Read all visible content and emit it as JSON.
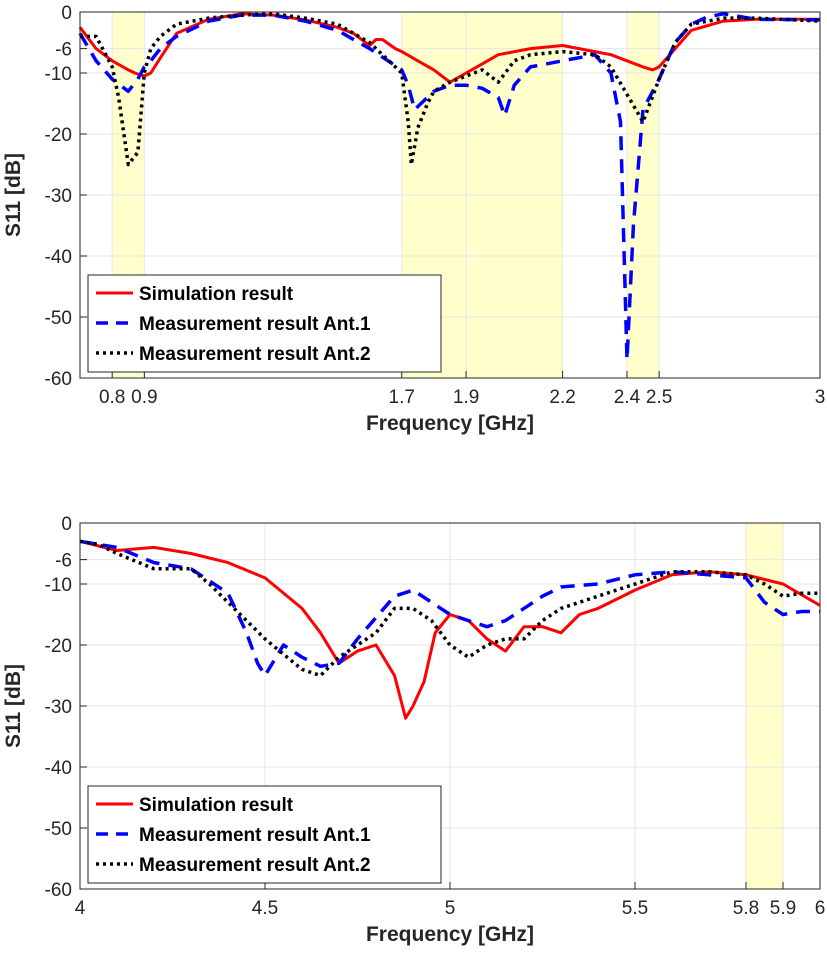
{
  "chart_data": [
    {
      "type": "line",
      "xlabel": "Frequency [GHz]",
      "ylabel": "S11 [dB]",
      "xlim": [
        0.7,
        3
      ],
      "ylim": [
        -60,
        0
      ],
      "xticks": [
        0.8,
        0.9,
        1.7,
        1.9,
        2.2,
        2.4,
        2.5,
        3
      ],
      "xtick_labels": [
        "0.8",
        "0.9",
        "1.7",
        "1.9",
        "2.2",
        "2.4",
        "2.5",
        "3"
      ],
      "yticks": [
        0,
        -6,
        -10,
        -20,
        -30,
        -40,
        -50,
        -60
      ],
      "ytick_labels": [
        "0",
        "-6",
        "-10",
        "-20",
        "-30",
        "-40",
        "-50",
        "-60"
      ],
      "grid": true,
      "legend_position": "bottom-left",
      "highlight_bands": [
        [
          0.8,
          0.9
        ],
        [
          1.7,
          2.2
        ],
        [
          2.4,
          2.5
        ]
      ],
      "highlight_color": "#ffffcc",
      "series": [
        {
          "name": "Simulation result",
          "color": "#ff0000",
          "style": "solid",
          "x": [
            0.7,
            0.75,
            0.8,
            0.85,
            0.87,
            0.9,
            0.92,
            0.95,
            1.0,
            1.1,
            1.2,
            1.3,
            1.4,
            1.5,
            1.55,
            1.6,
            1.62,
            1.64,
            1.68,
            1.7,
            1.75,
            1.8,
            1.85,
            1.9,
            1.95,
            2.0,
            2.1,
            2.2,
            2.3,
            2.35,
            2.4,
            2.45,
            2.48,
            2.5,
            2.55,
            2.6,
            2.7,
            2.8,
            3.0
          ],
          "y": [
            -2.5,
            -6,
            -8,
            -9.5,
            -10,
            -10.5,
            -10,
            -7.5,
            -3.5,
            -1.2,
            -0.3,
            -0.5,
            -1.3,
            -2.5,
            -3.5,
            -5.5,
            -4.5,
            -4.5,
            -6,
            -6.5,
            -8,
            -9.5,
            -11.5,
            -10,
            -8.5,
            -7,
            -6,
            -5.5,
            -6.5,
            -7,
            -8,
            -9,
            -9.5,
            -9,
            -6,
            -3,
            -1.5,
            -1.2,
            -1.2
          ]
        },
        {
          "name": "Measurement result Ant.1",
          "color": "#0000ff",
          "style": "dashed",
          "x": [
            0.7,
            0.75,
            0.8,
            0.85,
            0.88,
            0.9,
            0.92,
            0.95,
            1.0,
            1.1,
            1.2,
            1.3,
            1.4,
            1.5,
            1.6,
            1.7,
            1.72,
            1.74,
            1.76,
            1.8,
            1.85,
            1.9,
            1.95,
            2.0,
            2.02,
            2.05,
            2.1,
            2.2,
            2.3,
            2.35,
            2.38,
            2.4,
            2.42,
            2.45,
            2.5,
            2.55,
            2.6,
            2.65,
            2.7,
            2.8,
            3.0
          ],
          "y": [
            -3.5,
            -8,
            -11,
            -13,
            -11,
            -9,
            -8,
            -6,
            -4,
            -1.5,
            -0.5,
            -0.5,
            -1.5,
            -3,
            -6,
            -9.5,
            -12,
            -16,
            -15,
            -13,
            -12,
            -12,
            -12.5,
            -14,
            -17,
            -12,
            -9,
            -8,
            -7,
            -10,
            -18,
            -57,
            -35,
            -16,
            -11,
            -5,
            -2,
            -0.8,
            -0.3,
            -1.2,
            -1.3
          ]
        },
        {
          "name": "Measurement result Ant.2",
          "color": "#000000",
          "style": "dotted",
          "x": [
            0.7,
            0.75,
            0.8,
            0.82,
            0.85,
            0.88,
            0.9,
            0.92,
            0.95,
            1.0,
            1.1,
            1.2,
            1.3,
            1.4,
            1.5,
            1.6,
            1.7,
            1.72,
            1.73,
            1.75,
            1.78,
            1.8,
            1.85,
            1.9,
            1.95,
            2.0,
            2.05,
            2.1,
            2.2,
            2.3,
            2.35,
            2.4,
            2.45,
            2.5,
            2.55,
            2.6,
            2.7,
            2.8,
            3.0
          ],
          "y": [
            -4,
            -4,
            -9,
            -14,
            -25,
            -23,
            -10,
            -6,
            -4,
            -2,
            -1,
            -0.5,
            -0.3,
            -1,
            -2,
            -5,
            -10,
            -18,
            -25,
            -19,
            -15,
            -13,
            -11.5,
            -10.5,
            -9.5,
            -11.5,
            -8,
            -7,
            -6.5,
            -7,
            -9,
            -13.5,
            -18,
            -11,
            -5,
            -2,
            -1,
            -1,
            -1.5
          ]
        }
      ]
    },
    {
      "type": "line",
      "xlabel": "Frequency [GHz]",
      "ylabel": "S11 [dB]",
      "xlim": [
        4,
        6
      ],
      "ylim": [
        -60,
        0
      ],
      "xticks": [
        4,
        4.5,
        5,
        5.5,
        5.8,
        5.9,
        6
      ],
      "xtick_labels": [
        "4",
        "4.5",
        "5",
        "5.5",
        "5.8",
        "5.9",
        "6"
      ],
      "yticks": [
        0,
        -6,
        -10,
        -20,
        -30,
        -40,
        -50,
        -60
      ],
      "ytick_labels": [
        "0",
        "-6",
        "-10",
        "-20",
        "-30",
        "-40",
        "-50",
        "-60"
      ],
      "grid": true,
      "legend_position": "bottom-left",
      "highlight_bands": [
        [
          5.8,
          5.9
        ]
      ],
      "highlight_color": "#ffffcc",
      "series": [
        {
          "name": "Simulation result",
          "color": "#ff0000",
          "style": "solid",
          "x": [
            4.0,
            4.1,
            4.2,
            4.3,
            4.4,
            4.5,
            4.6,
            4.65,
            4.7,
            4.75,
            4.8,
            4.85,
            4.88,
            4.9,
            4.93,
            4.96,
            5.0,
            5.05,
            5.1,
            5.15,
            5.2,
            5.25,
            5.3,
            5.35,
            5.4,
            5.5,
            5.6,
            5.7,
            5.8,
            5.9,
            6.0
          ],
          "y": [
            -3,
            -4.5,
            -4,
            -5,
            -6.5,
            -9,
            -14,
            -18,
            -23,
            -21,
            -20,
            -25,
            -32,
            -30,
            -26,
            -18,
            -15,
            -16,
            -19,
            -21,
            -17,
            -17,
            -18,
            -15,
            -14,
            -11,
            -8.5,
            -8,
            -8.5,
            -10,
            -13.5
          ]
        },
        {
          "name": "Measurement result Ant.1",
          "color": "#0000ff",
          "style": "dashed",
          "x": [
            4.0,
            4.05,
            4.1,
            4.2,
            4.3,
            4.4,
            4.45,
            4.48,
            4.5,
            4.55,
            4.6,
            4.65,
            4.7,
            4.75,
            4.8,
            4.85,
            4.9,
            4.95,
            5.0,
            5.05,
            5.1,
            5.15,
            5.2,
            5.25,
            5.3,
            5.4,
            5.5,
            5.6,
            5.7,
            5.8,
            5.85,
            5.9,
            5.95,
            6.0
          ],
          "y": [
            -3,
            -3.5,
            -4,
            -6.5,
            -7.5,
            -11.5,
            -18,
            -23,
            -25,
            -20,
            -22,
            -23.5,
            -23,
            -19,
            -15.5,
            -12,
            -11,
            -13,
            -15,
            -16,
            -17,
            -16,
            -14,
            -12,
            -10.5,
            -10,
            -8.5,
            -8,
            -8.5,
            -9,
            -13,
            -15,
            -14.5,
            -14.5
          ]
        },
        {
          "name": "Measurement result Ant.2",
          "color": "#000000",
          "style": "dotted",
          "x": [
            4.0,
            4.05,
            4.1,
            4.2,
            4.3,
            4.35,
            4.4,
            4.45,
            4.5,
            4.55,
            4.6,
            4.65,
            4.7,
            4.75,
            4.8,
            4.85,
            4.9,
            4.95,
            5.0,
            5.05,
            5.1,
            5.15,
            5.2,
            5.25,
            5.3,
            5.4,
            5.5,
            5.6,
            5.7,
            5.8,
            5.85,
            5.9,
            5.95,
            6.0
          ],
          "y": [
            -3,
            -3.5,
            -5,
            -7.5,
            -7.5,
            -10,
            -13,
            -16,
            -19,
            -21.5,
            -24,
            -25,
            -22,
            -20,
            -18,
            -14,
            -14,
            -16,
            -20,
            -22,
            -20,
            -19,
            -19,
            -16,
            -14,
            -12,
            -10,
            -8,
            -8,
            -8.5,
            -10,
            -12,
            -11.5,
            -11.5
          ]
        }
      ]
    }
  ]
}
